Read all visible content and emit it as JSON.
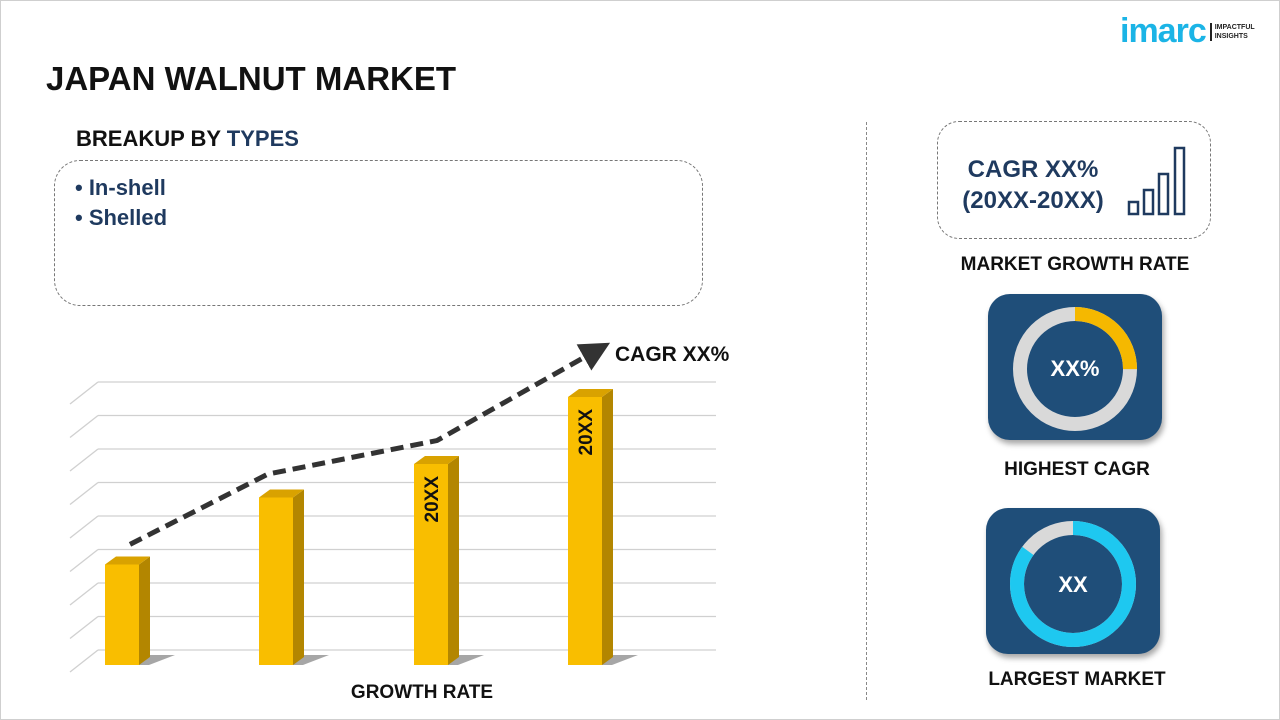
{
  "title": "JAPAN WALNUT MARKET",
  "logo": {
    "word": "imarc",
    "tagline_1": "IMPACTFUL",
    "tagline_2": "INSIGHTS"
  },
  "breakup": {
    "prefix": "BREAKUP BY ",
    "highlight": "TYPES",
    "items": [
      "• In-shell",
      "• Shelled"
    ]
  },
  "cagr_box": {
    "line1": "CAGR XX%",
    "line2": "(20XX-20XX)",
    "icon": "bar-chart-growth-icon",
    "label": "MARKET GROWTH RATE"
  },
  "highest": {
    "value": "XX%",
    "label": "HIGHEST CAGR",
    "fraction": 0.25,
    "color": "#f5b800"
  },
  "largest": {
    "value": "XX",
    "label": "LARGEST MARKET",
    "fraction": 0.85,
    "color": "#1ec8f0"
  },
  "colors": {
    "bar": "#f9be00",
    "bar_side": "#b38600",
    "card": "#1f4e79",
    "text_blue": "#1f3a5f"
  },
  "chart_data": {
    "type": "bar",
    "categories": [
      "",
      "",
      "",
      ""
    ],
    "values": [
      3,
      5,
      6,
      8
    ],
    "bar_labels": [
      "",
      "",
      "20XX",
      "20XX"
    ],
    "trend_line": [
      3.6,
      5.7,
      6.7,
      9.4
    ],
    "annotation": "CAGR XX%",
    "xlabel": "GROWTH RATE",
    "ylabel": "",
    "ylim": [
      0,
      8.5
    ],
    "grid": true
  }
}
